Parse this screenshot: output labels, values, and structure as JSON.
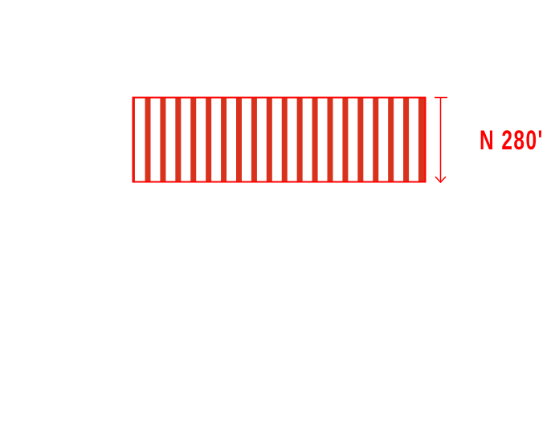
{
  "diagram": {
    "dimension_label": "N 280'",
    "stripe_count": 19,
    "colors": {
      "outline": "#ff0000",
      "stripe": "#d9321c",
      "text": "#ff0000"
    },
    "arrow_direction": "down"
  }
}
